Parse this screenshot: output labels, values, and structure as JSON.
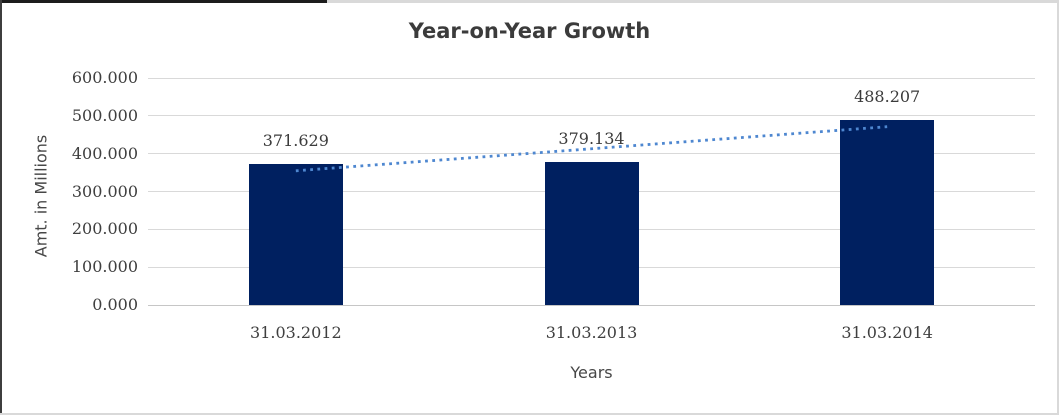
{
  "chart_data": {
    "type": "bar",
    "title": "Year-on-Year Growth",
    "xlabel": "Years",
    "ylabel": "Amt. in Millions",
    "categories": [
      "31.03.2012",
      "31.03.2013",
      "31.03.2014"
    ],
    "values": [
      371.629,
      379.134,
      488.207
    ],
    "data_labels": [
      "371.629",
      "379.134",
      "488.207"
    ],
    "ylim": [
      0,
      600
    ],
    "y_ticks": [
      {
        "value": 600,
        "label": "600.000"
      },
      {
        "value": 500,
        "label": "500.000"
      },
      {
        "value": 400,
        "label": "400.000"
      },
      {
        "value": 300,
        "label": "300.000"
      },
      {
        "value": 200,
        "label": "200.000"
      },
      {
        "value": 100,
        "label": "100.000"
      },
      {
        "value": 0,
        "label": "0.000"
      }
    ],
    "grid": true,
    "legend": false,
    "bar_color": "#002060",
    "trendline": {
      "type": "linear",
      "style": "dotted",
      "color": "#4e87d0"
    },
    "gridline_color": "#d9d9d9",
    "axis_line_color": "#c6c6c6",
    "text_color": "#3f3f3f"
  }
}
